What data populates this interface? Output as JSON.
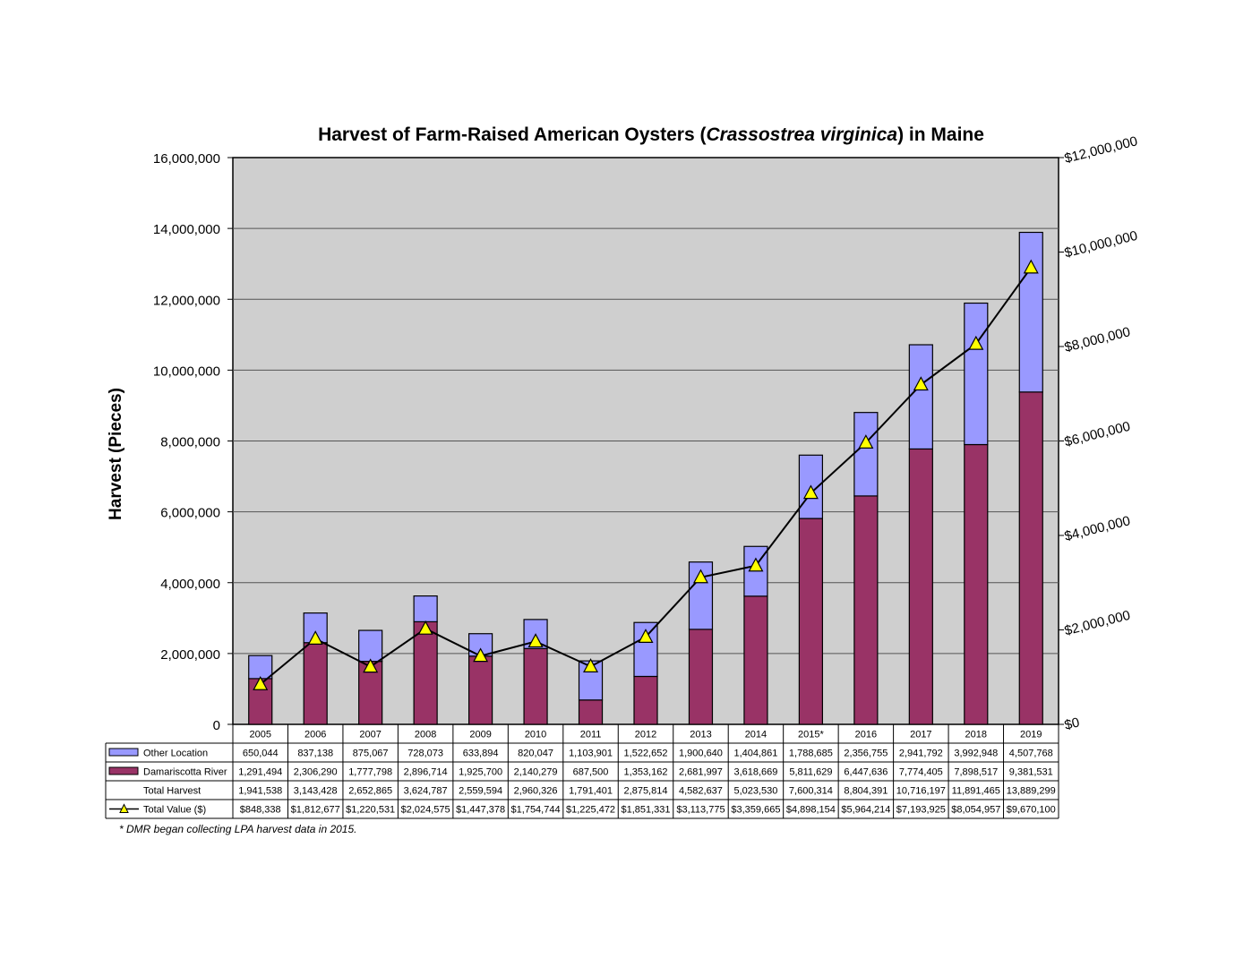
{
  "chart_data": {
    "type": "bar",
    "title": {
      "prefix": "Harvest of Farm-Raised American Oysters (",
      "species": "Crassostrea virginica",
      "suffix": ") in Maine"
    },
    "ylabel": "Harvest (Pieces)",
    "ylim": [
      0,
      16000000
    ],
    "y_ticks": [
      "0",
      "2,000,000",
      "4,000,000",
      "6,000,000",
      "8,000,000",
      "10,000,000",
      "12,000,000",
      "14,000,000",
      "16,000,000"
    ],
    "y2lim": [
      0,
      12000000
    ],
    "y2_ticks": [
      "$0",
      "$2,000,000",
      "$4,000,000",
      "$6,000,000",
      "$8,000,000",
      "$10,000,000",
      "$12,000,000"
    ],
    "categories": [
      "2005",
      "2006",
      "2007",
      "2008",
      "2009",
      "2010",
      "2011",
      "2012",
      "2013",
      "2014",
      "2015*",
      "2016",
      "2017",
      "2018",
      "2019"
    ],
    "stacked": true,
    "grid": true,
    "series": [
      {
        "name": "Damariscotta River",
        "type": "bar",
        "color": "#993366",
        "values": [
          1291494,
          2306290,
          1777798,
          2896714,
          1925700,
          2140279,
          687500,
          1353162,
          2681997,
          3618669,
          5811629,
          6447636,
          7774405,
          7898517,
          9381531
        ],
        "display": [
          "1,291,494",
          "2,306,290",
          "1,777,798",
          "2,896,714",
          "1,925,700",
          "2,140,279",
          "687,500",
          "1,353,162",
          "2,681,997",
          "3,618,669",
          "5,811,629",
          "6,447,636",
          "7,774,405",
          "7,898,517",
          "9,381,531"
        ]
      },
      {
        "name": "Other Location",
        "type": "bar",
        "color": "#9999ff",
        "values": [
          650044,
          837138,
          875067,
          728073,
          633894,
          820047,
          1103901,
          1522652,
          1900640,
          1404861,
          1788685,
          2356755,
          2941792,
          3992948,
          4507768
        ],
        "display": [
          "650,044",
          "837,138",
          "875,067",
          "728,073",
          "633,894",
          "820,047",
          "1,103,901",
          "1,522,652",
          "1,900,640",
          "1,404,861",
          "1,788,685",
          "2,356,755",
          "2,941,792",
          "3,992,948",
          "4,507,768"
        ]
      },
      {
        "name": "Total Value ($)",
        "type": "line",
        "axis": "right",
        "color": "#000000",
        "marker_color": "#ffff00",
        "values": [
          848338,
          1812677,
          1220531,
          2024575,
          1447378,
          1754744,
          1225472,
          1851331,
          3113775,
          3359665,
          4898154,
          5964214,
          7193925,
          8054957,
          9670100
        ],
        "display": [
          "$848,338",
          "$1,812,677",
          "$1,220,531",
          "$2,024,575",
          "$1,447,378",
          "$1,754,744",
          "$1,225,472",
          "$1,851,331",
          "$3,113,775",
          "$3,359,665",
          "$4,898,154",
          "$5,964,214",
          "$7,193,925",
          "$8,054,957",
          "$9,670,100"
        ]
      }
    ],
    "total_harvest": {
      "label": "Total Harvest",
      "values": [
        1941538,
        3143428,
        2652865,
        3624787,
        2559594,
        2960326,
        1791401,
        2875814,
        4582637,
        5023530,
        7600314,
        8804391,
        10716197,
        11891465,
        13889299
      ],
      "display": [
        "1,941,538",
        "3,143,428",
        "2,652,865",
        "3,624,787",
        "2,559,594",
        "2,960,326",
        "1,791,401",
        "2,875,814",
        "4,582,637",
        "5,023,530",
        "7,600,314",
        "8,804,391",
        "10,716,197",
        "11,891,465",
        "13,889,299"
      ]
    },
    "footnote": "* DMR began collecting LPA harvest data in 2015.",
    "colors": {
      "plot_background": "#cfcfcf",
      "gridline": "#555555"
    }
  }
}
